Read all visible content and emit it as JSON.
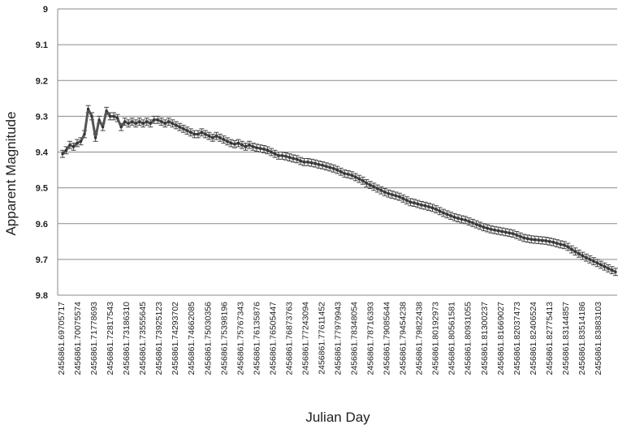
{
  "chart_data": {
    "type": "line",
    "title": "",
    "xlabel": "Julian Day",
    "ylabel": "Apparent Magnitude",
    "ylim": [
      9.8,
      9.0
    ],
    "y_inverted": true,
    "yticks": [
      "9",
      "9.1",
      "9.2",
      "9.3",
      "9.4",
      "9.5",
      "9.6",
      "9.7",
      "9.8"
    ],
    "ytick_values": [
      9.0,
      9.1,
      9.2,
      9.3,
      9.4,
      9.5,
      9.6,
      9.7,
      9.8
    ],
    "x_tick_labels": [
      "2456861.69705717",
      "2456861.70075574",
      "2456861.71778693",
      "2456861.72817543",
      "2456861.73186310",
      "2456861.73555645",
      "2456861.73925123",
      "2456861.74293702",
      "2456861.74662085",
      "2456861.75030356",
      "2456861.75398196",
      "2456861.75767343",
      "2456861.76135876",
      "2456861.76505447",
      "2456861.76873763",
      "2456861.77243094",
      "2456861.77611452",
      "2456861.77979943",
      "2456861.78348054",
      "2456861.78716393",
      "2456861.79085644",
      "2456861.79454238",
      "2456861.79822438",
      "2456861.80192973",
      "2456861.80561581",
      "2456861.80931055",
      "2456861.81300237",
      "2456861.81669027",
      "2456861.82037473",
      "2456861.82406524",
      "2456861.82775413",
      "2456861.83144857",
      "2456861.83514186",
      "2456861.83883103"
    ],
    "grid": "horizontal",
    "legend": "none",
    "error_bar": 0.01,
    "line_color": "#555555",
    "series": [
      {
        "values": [
          9.405,
          9.395,
          9.38,
          9.385,
          9.375,
          9.37,
          9.35,
          9.28,
          9.3,
          9.36,
          9.31,
          9.33,
          9.285,
          9.3,
          9.3,
          9.305,
          9.33,
          9.315,
          9.32,
          9.315,
          9.32,
          9.315,
          9.32,
          9.315,
          9.32,
          9.31,
          9.31,
          9.315,
          9.32,
          9.315,
          9.32,
          9.325,
          9.33,
          9.335,
          9.34,
          9.345,
          9.35,
          9.35,
          9.345,
          9.35,
          9.355,
          9.36,
          9.355,
          9.36,
          9.365,
          9.37,
          9.375,
          9.378,
          9.375,
          9.38,
          9.385,
          9.38,
          9.385,
          9.388,
          9.39,
          9.392,
          9.395,
          9.4,
          9.405,
          9.41,
          9.41,
          9.412,
          9.415,
          9.418,
          9.42,
          9.425,
          9.428,
          9.428,
          9.43,
          9.432,
          9.435,
          9.437,
          9.44,
          9.443,
          9.446,
          9.45,
          9.455,
          9.46,
          9.462,
          9.465,
          9.47,
          9.475,
          9.48,
          9.487,
          9.492,
          9.497,
          9.502,
          9.507,
          9.512,
          9.516,
          9.519,
          9.522,
          9.525,
          9.53,
          9.535,
          9.54,
          9.542,
          9.545,
          9.548,
          9.55,
          9.553,
          9.556,
          9.56,
          9.565,
          9.57,
          9.574,
          9.578,
          9.582,
          9.585,
          9.588,
          9.59,
          9.594,
          9.598,
          9.602,
          9.606,
          9.61,
          9.613,
          9.616,
          9.618,
          9.62,
          9.622,
          9.624,
          9.626,
          9.628,
          9.632,
          9.636,
          9.64,
          9.642,
          9.644,
          9.645,
          9.646,
          9.647,
          9.648,
          9.65,
          9.652,
          9.655,
          9.658,
          9.66,
          9.665,
          9.672,
          9.678,
          9.684,
          9.69,
          9.695,
          9.7,
          9.705,
          9.71,
          9.715,
          9.72,
          9.725,
          9.73,
          9.735
        ]
      }
    ]
  }
}
